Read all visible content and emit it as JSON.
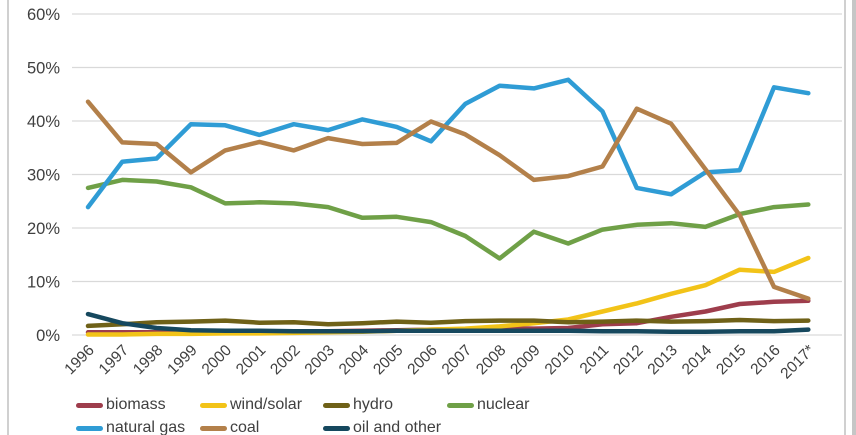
{
  "page": {
    "background": "#ffffff",
    "edge_line_color": "#d0d0d0",
    "gridline_color": "#d9d9d9",
    "tick_label_color": "#404040"
  },
  "chart_data": {
    "type": "line",
    "title": "",
    "xlabel": "",
    "ylabel": "",
    "ylim": [
      0,
      60
    ],
    "grid": "horizontal",
    "legend_position": "bottom",
    "y_ticks": [
      {
        "value": 60,
        "label": "60%"
      },
      {
        "value": 50,
        "label": "50%"
      },
      {
        "value": 40,
        "label": "40%"
      },
      {
        "value": 30,
        "label": "30%"
      },
      {
        "value": 20,
        "label": "20%"
      },
      {
        "value": 10,
        "label": "10%"
      },
      {
        "value": 0,
        "label": "0%"
      }
    ],
    "x_labels": [
      "1996",
      "1997",
      "1998",
      "1999",
      "2000",
      "2001",
      "2002",
      "2003",
      "2004",
      "2005",
      "2006",
      "2007",
      "2008",
      "2009",
      "2010",
      "2011",
      "2012",
      "2013",
      "2014",
      "2015",
      "2016",
      "2017*"
    ],
    "series": [
      {
        "name": "biomass",
        "color": "#9E3D4C",
        "values": [
          0.5,
          0.5,
          0.5,
          0.5,
          0.5,
          0.6,
          0.6,
          0.7,
          0.8,
          0.9,
          1.0,
          1.1,
          1.3,
          1.2,
          1.3,
          2.0,
          2.2,
          3.4,
          4.4,
          5.8,
          6.2,
          6.4
        ]
      },
      {
        "name": "wind/solar",
        "color": "#F2C318",
        "values": [
          0.1,
          0.1,
          0.2,
          0.2,
          0.3,
          0.3,
          0.4,
          0.5,
          0.6,
          0.8,
          1.0,
          1.2,
          1.6,
          2.2,
          2.9,
          4.4,
          5.9,
          7.7,
          9.3,
          12.2,
          11.8,
          14.4
        ]
      },
      {
        "name": "hydro",
        "color": "#6F6118",
        "values": [
          1.7,
          2.0,
          2.4,
          2.5,
          2.7,
          2.3,
          2.4,
          2.0,
          2.2,
          2.5,
          2.3,
          2.6,
          2.7,
          2.7,
          2.4,
          2.5,
          2.7,
          2.5,
          2.6,
          2.8,
          2.6,
          2.7
        ]
      },
      {
        "name": "nuclear",
        "color": "#6FA047",
        "values": [
          27.5,
          29.0,
          28.7,
          27.6,
          24.6,
          24.8,
          24.6,
          23.9,
          21.9,
          22.1,
          21.1,
          18.5,
          14.3,
          19.3,
          17.1,
          19.7,
          20.6,
          20.9,
          20.2,
          22.6,
          23.9,
          24.4
        ]
      },
      {
        "name": "natural gas",
        "color": "#2F9CD5",
        "values": [
          23.9,
          32.4,
          33.0,
          39.4,
          39.2,
          37.4,
          39.4,
          38.3,
          40.3,
          38.9,
          36.2,
          43.2,
          46.6,
          46.1,
          47.7,
          41.8,
          27.5,
          26.3,
          30.4,
          30.8,
          46.3,
          45.2
        ]
      },
      {
        "name": "coal",
        "color": "#B3804A",
        "values": [
          43.6,
          36.0,
          35.7,
          30.4,
          34.5,
          36.1,
          34.5,
          36.8,
          35.7,
          35.9,
          39.9,
          37.5,
          33.6,
          29.0,
          29.7,
          31.5,
          42.3,
          39.5,
          31.0,
          22.4,
          9.0,
          6.8
        ]
      },
      {
        "name": "oil and other",
        "color": "#16485E",
        "values": [
          3.9,
          2.2,
          1.3,
          0.9,
          0.8,
          0.8,
          0.7,
          0.7,
          0.7,
          0.8,
          0.8,
          0.8,
          0.8,
          0.8,
          0.8,
          0.7,
          0.7,
          0.6,
          0.6,
          0.7,
          0.7,
          1.0
        ]
      }
    ],
    "legend_rows": [
      [
        "biomass",
        "wind/solar",
        "hydro",
        "nuclear"
      ],
      [
        "natural gas",
        "coal",
        "oil and other"
      ]
    ]
  }
}
